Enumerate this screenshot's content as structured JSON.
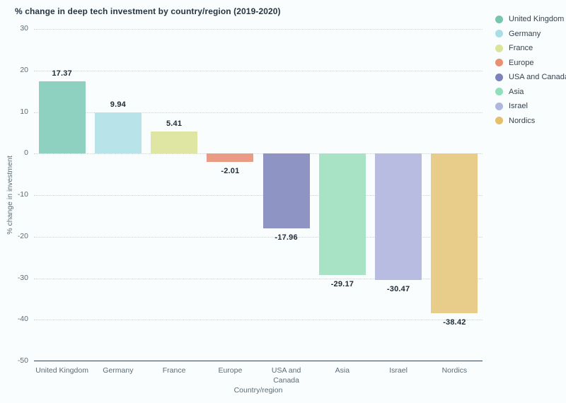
{
  "chart_data": {
    "type": "bar",
    "title": "% change in deep tech investment by country/region (2019-2020)",
    "xlabel": "Country/region",
    "ylabel": "% change in investment",
    "categories": [
      "United Kingdom",
      "Germany",
      "France",
      "Europe",
      "USA and Canada",
      "Asia",
      "Israel",
      "Nordics"
    ],
    "values": [
      17.37,
      9.94,
      5.41,
      -2.01,
      -17.96,
      -29.17,
      -30.47,
      -38.42
    ],
    "value_labels": [
      "17.37",
      "9.94",
      "5.41",
      "-2.01",
      "-17.96",
      "-29.17",
      "-30.47",
      "-38.42"
    ],
    "xticklabels": [
      "United Kingdom",
      "Germany",
      "France",
      "Europe",
      "USA and\nCanada",
      "Asia",
      "Israel",
      "Nordics"
    ],
    "bar_colors": [
      "#8fd1c0",
      "#b8e3e9",
      "#dfe5a2",
      "#ea9b83",
      "#8e94c4",
      "#a9e3c5",
      "#b8bce0",
      "#e8cd8a"
    ],
    "legend_colors": [
      "#77c5aa",
      "#a8dee4",
      "#dce39a",
      "#ea8f72",
      "#7d82bd",
      "#90dfbb",
      "#b1b6dd",
      "#e4bf6e"
    ],
    "legend": [
      "United Kingdom",
      "Germany",
      "France",
      "Europe",
      "USA and Canada",
      "Asia",
      "Israel",
      "Nordics"
    ],
    "legend_position": "top-right",
    "ylim": [
      -50,
      30
    ],
    "ytick_step": 10,
    "grid": "horizontal-dotted",
    "colors_meta": {
      "background": "#fafdfd",
      "grid_color": "#cbd4d6",
      "axis_line_color": "#33424c",
      "tick_label_color": "#5d6b75",
      "title_color": "#273540",
      "data_label_color": "#202c36"
    }
  }
}
